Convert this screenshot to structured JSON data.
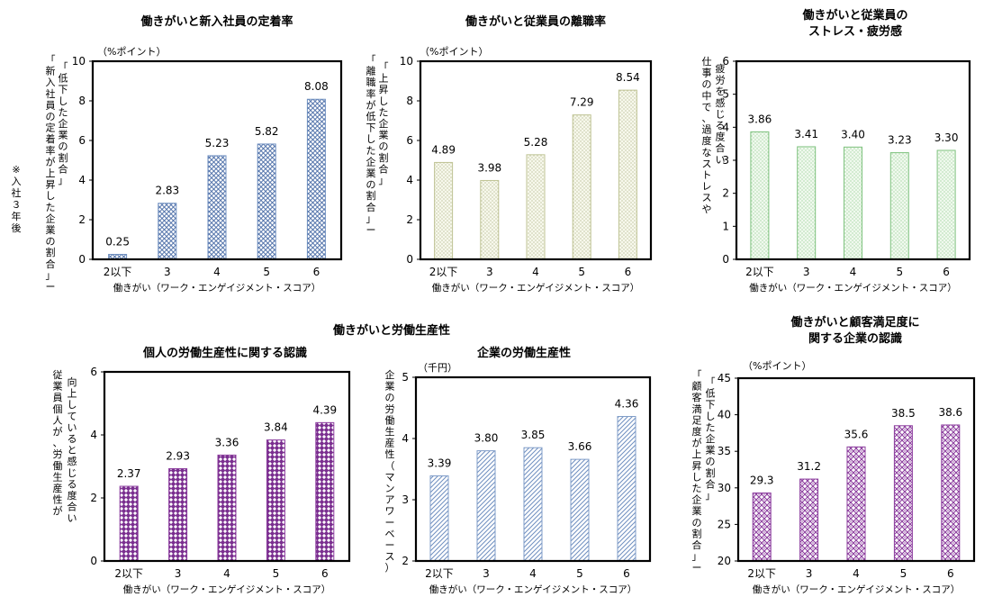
{
  "section_title": "働きがいと労働生産性",
  "note": [
    "※",
    "入",
    "社",
    "３",
    "年",
    "後"
  ],
  "colors": {
    "c1": "#6f8fc0",
    "c2": "#bfc394",
    "c3": "#7ec27e",
    "c4": "#8c3d9e",
    "c5": "#7f9cc8",
    "c6": "#8c3d9e"
  },
  "chart_data": [
    {
      "id": "c1",
      "type": "bar",
      "title": [
        "働きがいと新入社員の定着率"
      ],
      "unit": "（%ポイント）",
      "categories": [
        "2以下",
        "3",
        "4",
        "5",
        "6"
      ],
      "values": [
        0.25,
        2.83,
        5.23,
        5.82,
        8.08
      ],
      "value_labels": [
        "0.25",
        "2.83",
        "5.23",
        "5.82",
        "8.08"
      ],
      "ylim": [
        0,
        10
      ],
      "yticks": [
        0,
        2,
        4,
        6,
        8,
        10
      ],
      "xlabel": "働きがい（ワーク・エンゲイジメント・スコア）",
      "ylabel": [
        "「新入社員の定着率が上昇した企業の割合」ー",
        "「低下した企業の割合」"
      ]
    },
    {
      "id": "c2",
      "type": "bar",
      "title": [
        "働きがいと従業員の離職率"
      ],
      "unit": "（%ポイント）",
      "categories": [
        "2以下",
        "3",
        "4",
        "5",
        "6"
      ],
      "values": [
        4.89,
        3.98,
        5.28,
        7.29,
        8.54
      ],
      "value_labels": [
        "4.89",
        "3.98",
        "5.28",
        "7.29",
        "8.54"
      ],
      "ylim": [
        0,
        10
      ],
      "yticks": [
        0,
        2,
        4,
        6,
        8,
        10
      ],
      "xlabel": "働きがい（ワーク・エンゲイジメント・スコア）",
      "ylabel": [
        "「離職率が低下した企業の割合」ー",
        "「上昇した企業の割合」"
      ]
    },
    {
      "id": "c3",
      "type": "bar",
      "title": [
        "働きがいと従業員の",
        "ストレス・疲労感"
      ],
      "unit": "",
      "categories": [
        "2以下",
        "3",
        "4",
        "5",
        "6"
      ],
      "values": [
        3.86,
        3.41,
        3.4,
        3.23,
        3.3
      ],
      "value_labels": [
        "3.86",
        "3.41",
        "3.40",
        "3.23",
        "3.30"
      ],
      "ylim": [
        0,
        6
      ],
      "yticks": [
        0,
        1,
        2,
        3,
        4,
        5,
        6
      ],
      "xlabel": "働きがい（ワーク・エンゲイジメント・スコア）",
      "ylabel": [
        "仕事の中で、過度なストレスや",
        "疲労を感じる度合い"
      ]
    },
    {
      "id": "c4",
      "type": "bar",
      "title": [
        "個人の労働生産性に関する認識"
      ],
      "unit": "",
      "categories": [
        "2以下",
        "3",
        "4",
        "5",
        "6"
      ],
      "values": [
        2.37,
        2.93,
        3.36,
        3.84,
        4.39
      ],
      "value_labels": [
        "2.37",
        "2.93",
        "3.36",
        "3.84",
        "4.39"
      ],
      "ylim": [
        0,
        6
      ],
      "yticks": [
        0,
        2,
        4,
        6
      ],
      "xlabel": "働きがい（ワーク・エンゲイジメント・スコア）",
      "ylabel": [
        "従業員個人が、労働生産性が",
        "向上していると感じる度合い"
      ]
    },
    {
      "id": "c5",
      "type": "bar",
      "title": [
        "企業の労働生産性"
      ],
      "unit": "（千円）",
      "categories": [
        "2以下",
        "3",
        "4",
        "5",
        "6"
      ],
      "values": [
        3.39,
        3.8,
        3.85,
        3.66,
        4.36
      ],
      "value_labels": [
        "3.39",
        "3.80",
        "3.85",
        "3.66",
        "4.36"
      ],
      "ylim": [
        2,
        5
      ],
      "yticks": [
        2,
        3,
        4,
        5
      ],
      "xlabel": "働きがい（ワーク・エンゲイジメント・スコア）",
      "ylabel": [
        "企業の労働生産性（マンアワーベース）"
      ]
    },
    {
      "id": "c6",
      "type": "bar",
      "title": [
        "働きがいと顧客満足度に",
        "関する企業の認識"
      ],
      "unit": "（%ポイント）",
      "categories": [
        "2以下",
        "3",
        "4",
        "5",
        "6"
      ],
      "values": [
        29.3,
        31.2,
        35.6,
        38.5,
        38.6
      ],
      "value_labels": [
        "29.3",
        "31.2",
        "35.6",
        "38.5",
        "38.6"
      ],
      "ylim": [
        20,
        45
      ],
      "yticks": [
        20,
        25,
        30,
        35,
        40,
        45
      ],
      "xlabel": "働きがい（ワーク・エンゲイジメント・スコア）",
      "ylabel": [
        "「顧客満足度が上昇した企業の割合」ー",
        "「低下した企業の割合」"
      ]
    }
  ]
}
